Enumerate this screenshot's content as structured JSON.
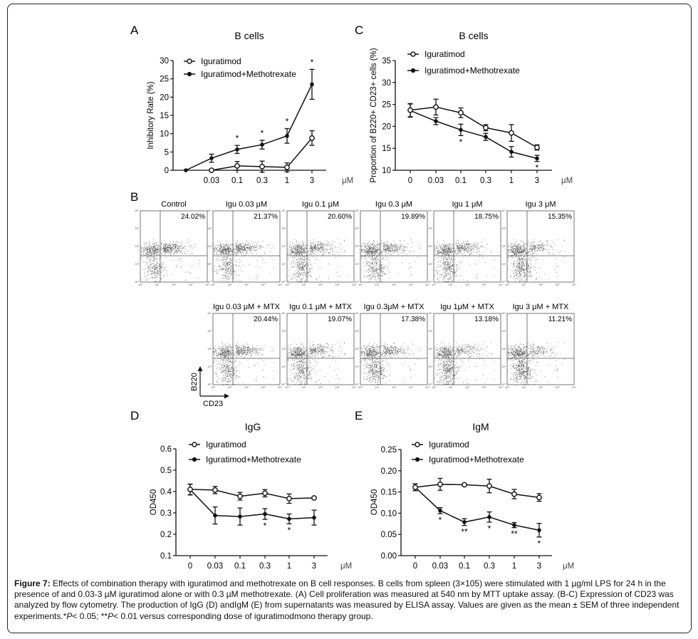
{
  "figure": {
    "caption_label": "Figure 7:",
    "caption_text": " Effects of combination therapy with iguratimod and methotrexate on B cell responses. B cells from spleen (3×105) were stimulated with 1 µg/ml LPS for 24 h in the presence of and 0.03-3 µM iguratimod alone or with 0.3 µM methotrexate. (A) Cell proliferation was measured at 540 nm by MTT uptake assay. (B-C) Expression of CD23 was analyzed by flow cytometry. The production of IgG (D) andIgM (E) from supernatants was measured by ELISA assay. Values are given as the mean ± SEM of three independent experiments.",
    "caption_stats_1": "*",
    "caption_p1": "P",
    "caption_stats_2": "< 0.05; **",
    "caption_p2": "P",
    "caption_stats_3": "< 0.01 versus corresponding dose of iguratimodmono therapy group."
  },
  "legend": {
    "series_open": "Iguratimod",
    "series_filled": "Iguratimod+Methotrexate"
  },
  "chart_data": [
    {
      "panel": "A",
      "type": "line",
      "title": "B cells",
      "xlabel": "μM",
      "ylabel": "Inhibitory Rate (%)",
      "categories": [
        "",
        "0.03",
        "0.1",
        "0.3",
        "1",
        "3"
      ],
      "ylim": [
        0,
        30
      ],
      "yticks": [
        0,
        5,
        10,
        15,
        20,
        25,
        30
      ],
      "series": [
        {
          "name": "Iguratimod",
          "marker": "open",
          "values": [
            null,
            0,
            1.2,
            1.0,
            0.8,
            8.8
          ],
          "errors": [
            null,
            0.2,
            1.2,
            1.5,
            1.2,
            2.0
          ]
        },
        {
          "name": "Iguratimod+Methotrexate",
          "marker": "filled",
          "values": [
            0,
            3.3,
            5.7,
            7.0,
            9.4,
            23.5
          ],
          "errors": [
            0,
            1.1,
            1.1,
            1.2,
            2.0,
            4.1
          ]
        }
      ],
      "origin_point": 0,
      "significance": [
        "",
        "",
        "*",
        "*",
        "*",
        "*"
      ]
    },
    {
      "panel": "C",
      "type": "line",
      "title": "B cells",
      "xlabel": "μM",
      "ylabel": "Proportion of B220+ CD23+ cells (%)",
      "categories": [
        "0",
        "0.03",
        "0.1",
        "0.3",
        "1",
        "3"
      ],
      "ylim": [
        10,
        35
      ],
      "yticks": [
        10,
        15,
        20,
        25,
        30,
        35
      ],
      "series": [
        {
          "name": "Iguratimod",
          "marker": "open",
          "values": [
            23.7,
            24.4,
            23.1,
            19.7,
            18.5,
            15.2
          ],
          "errors": [
            1.5,
            1.8,
            1.1,
            0.7,
            1.9,
            0.6
          ]
        },
        {
          "name": "Iguratimod+Methotrexate",
          "marker": "filled",
          "values": [
            23.6,
            21.2,
            19.2,
            17.6,
            14.2,
            12.7
          ],
          "errors": [
            1.5,
            0.8,
            1.3,
            0.8,
            1.2,
            0.7
          ]
        }
      ],
      "significance": [
        "",
        "",
        "*",
        "",
        "",
        "*"
      ]
    },
    {
      "panel": "D",
      "type": "line",
      "title": "IgG",
      "xlabel": "μM",
      "ylabel": "OD450",
      "categories": [
        "0",
        "0.03",
        "0.1",
        "0.3",
        "1",
        "3"
      ],
      "ylim": [
        0.1,
        0.6
      ],
      "yticks": [
        0.1,
        0.2,
        0.3,
        0.4,
        0.5,
        0.6
      ],
      "series": [
        {
          "name": "Iguratimod",
          "marker": "open",
          "values": [
            0.41,
            0.407,
            0.378,
            0.392,
            0.367,
            0.37
          ],
          "errors": [
            0.025,
            0.017,
            0.018,
            0.017,
            0.022,
            0.004
          ]
        },
        {
          "name": "Iguratimod+Methotrexate",
          "marker": "filled",
          "values": [
            0.409,
            0.288,
            0.283,
            0.295,
            0.272,
            0.278
          ],
          "errors": [
            0.025,
            0.04,
            0.04,
            0.025,
            0.023,
            0.035
          ]
        }
      ],
      "significance": [
        "",
        "",
        "",
        "*",
        "*",
        ""
      ]
    },
    {
      "panel": "E",
      "type": "line",
      "title": "IgM",
      "xlabel": "μM",
      "ylabel": "OD450",
      "categories": [
        "0",
        "0.03",
        "0.1",
        "0.3",
        "1",
        "3"
      ],
      "ylim": [
        0,
        0.25
      ],
      "yticks": [
        "0.00",
        "0.05",
        "0.10",
        "0.15",
        "0.20",
        "0.25"
      ],
      "series": [
        {
          "name": "Iguratimod",
          "marker": "open",
          "values": [
            0.161,
            0.168,
            0.167,
            0.164,
            0.145,
            0.137
          ],
          "errors": [
            0.008,
            0.014,
            0.002,
            0.016,
            0.011,
            0.009
          ]
        },
        {
          "name": "Iguratimod+Methotrexate",
          "marker": "filled",
          "values": [
            0.161,
            0.106,
            0.079,
            0.091,
            0.072,
            0.06
          ],
          "errors": [
            0.008,
            0.007,
            0.008,
            0.012,
            0.006,
            0.016
          ]
        }
      ],
      "significance": [
        "",
        "*",
        "**",
        "*",
        "**",
        "*"
      ]
    }
  ],
  "flow": {
    "panel": "B",
    "x_axis_label": "CD23",
    "y_axis_label": "B220",
    "tick_labels": [
      "10⁰",
      "10¹",
      "10²",
      "10³",
      "10⁴"
    ],
    "top_row": [
      {
        "title": "Control",
        "percent": "24.02%"
      },
      {
        "title": "Igu 0.03 μM",
        "percent": "21.37%"
      },
      {
        "title": "Igu 0.1 μM",
        "percent": "20.60%"
      },
      {
        "title": "Igu 0.3 μM",
        "percent": "19.89%"
      },
      {
        "title": "Igu 1 μM",
        "percent": "18.75%"
      },
      {
        "title": "Igu 3 μM",
        "percent": "15.35%"
      }
    ],
    "bottom_row": [
      {
        "title": "Igu 0.03 μM + MTX",
        "percent": "20.44%"
      },
      {
        "title": "Igu 0.1 μM + MTX",
        "percent": "19.07%"
      },
      {
        "title": "Igu 0.3μM + MTX",
        "percent": "17.38%"
      },
      {
        "title": "Igu 1μM + MTX",
        "percent": "13.18%"
      },
      {
        "title": "Igu 3 μM + MTX",
        "percent": "11.21%"
      }
    ]
  }
}
